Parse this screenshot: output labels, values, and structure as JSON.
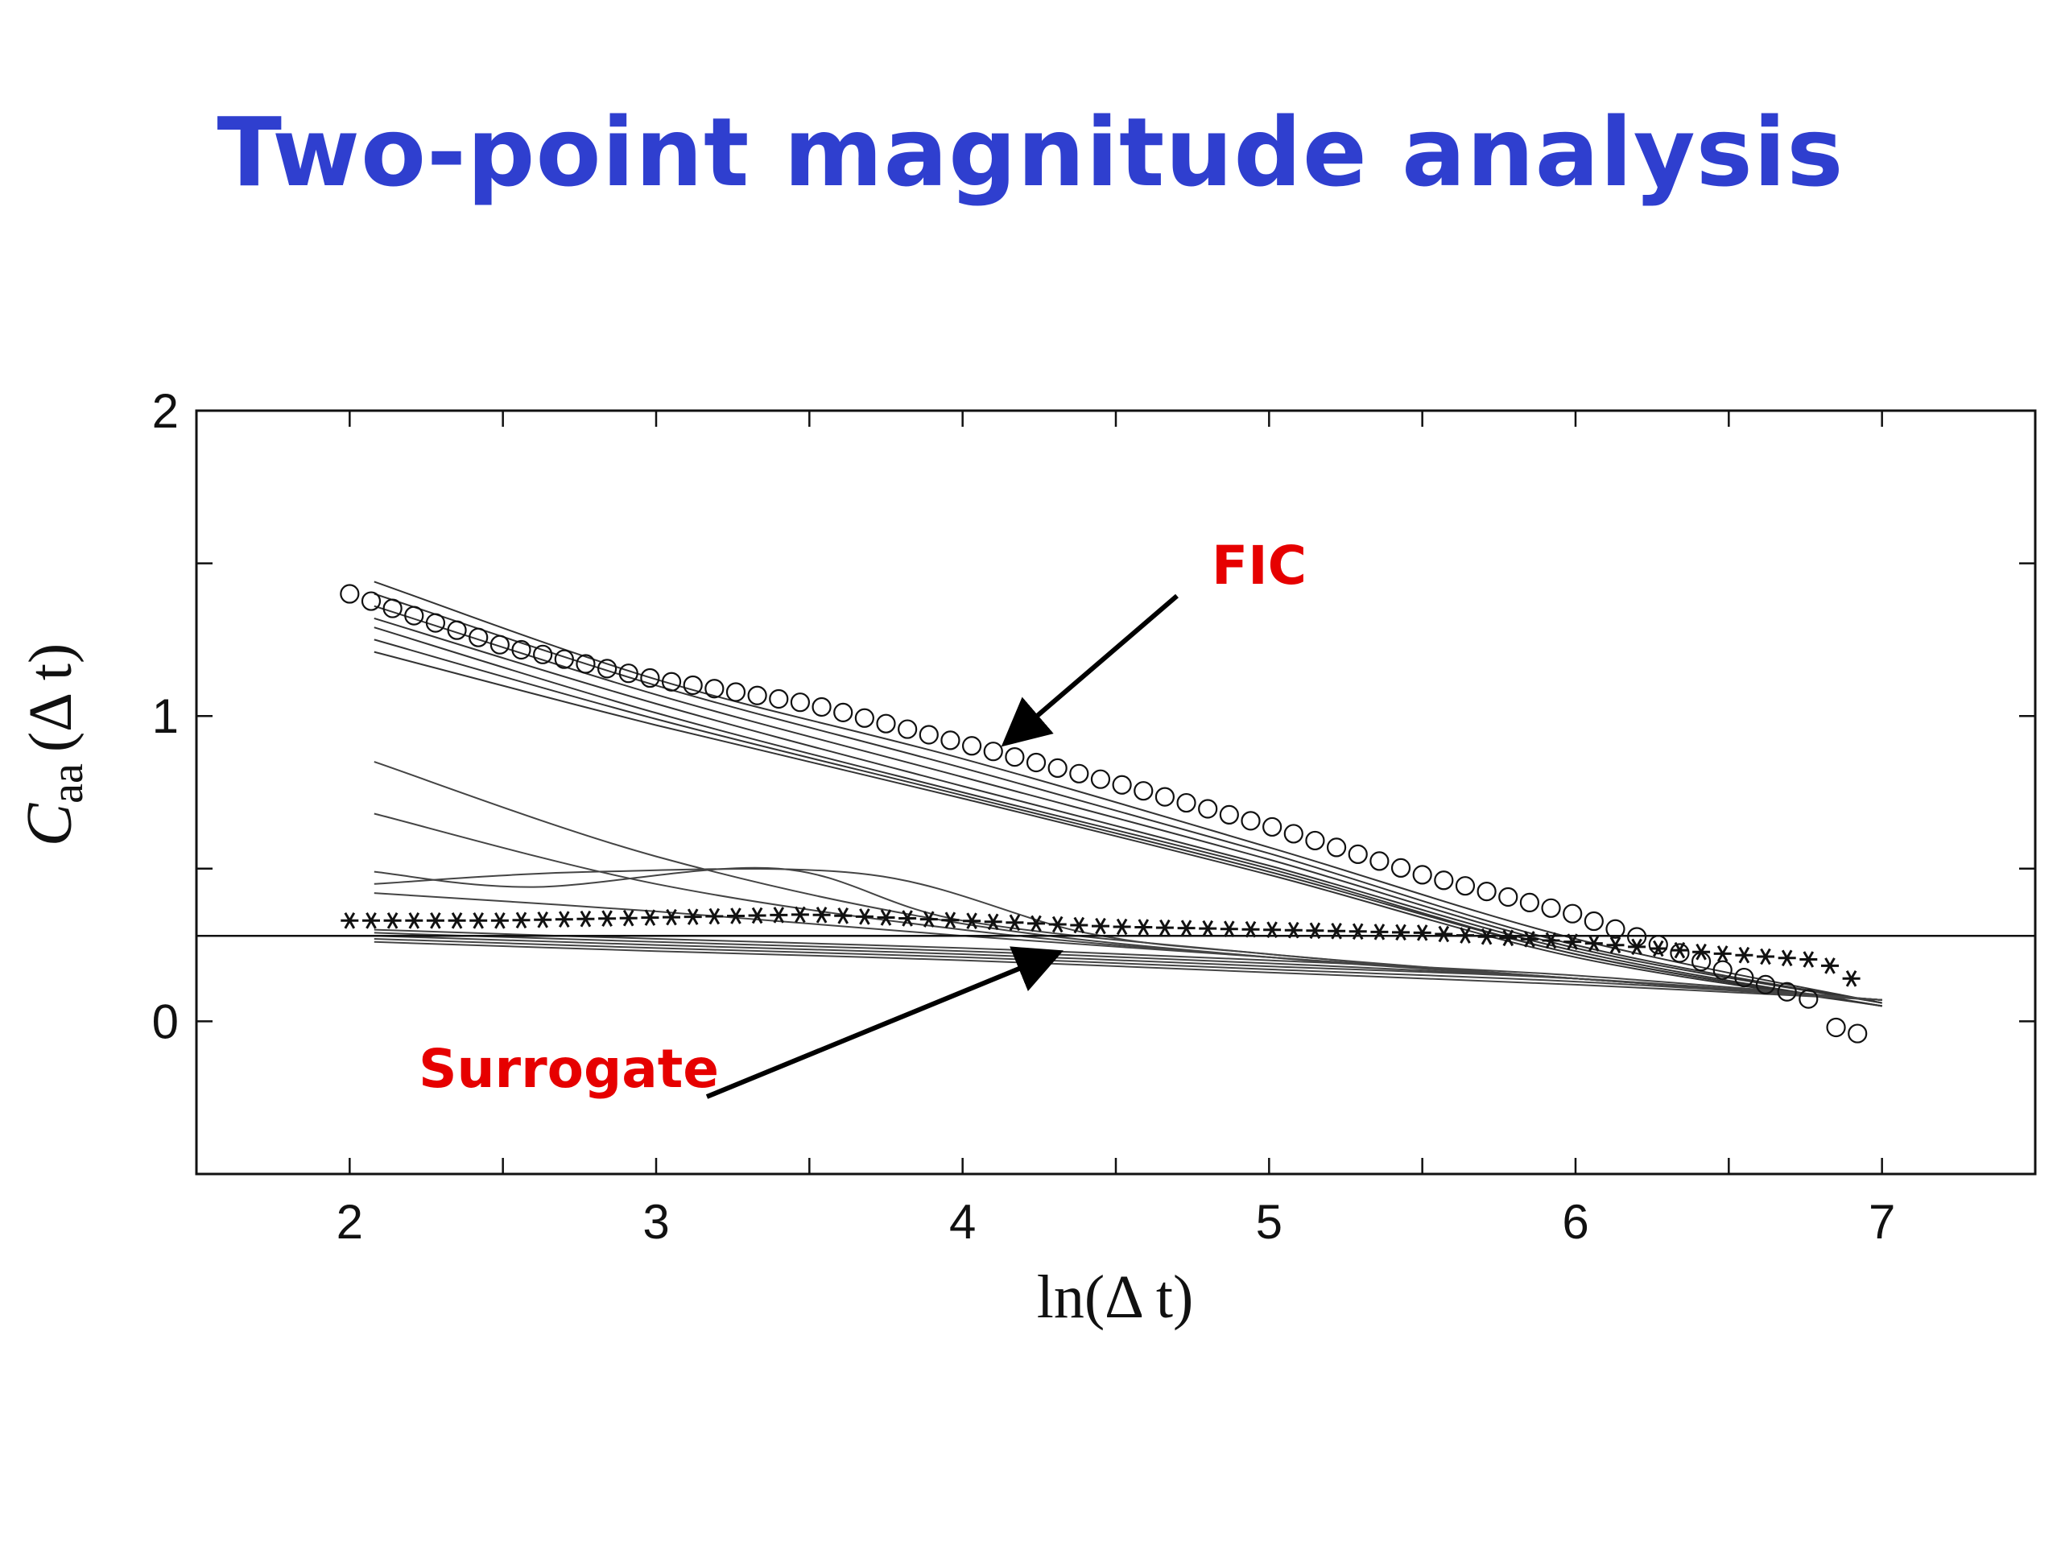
{
  "slide": {
    "title": "Two-point magnitude analysis"
  },
  "colors": {
    "title": "#2f3fcf",
    "annotation": "#e60000",
    "ink": "#111111"
  },
  "chart_data": {
    "type": "line",
    "title": "",
    "xlabel": "ln(Δ t)",
    "ylabel": "C",
    "ylabel_subscript": "aa",
    "ylabel_suffix": "(Δ t)",
    "xlim": [
      1.5,
      7.5
    ],
    "ylim": [
      -0.5,
      2.0
    ],
    "xticks": [
      2,
      3,
      4,
      5,
      6,
      7
    ],
    "yticks": [
      0,
      1,
      2
    ],
    "minor_xticks": [
      2.5,
      3.5,
      4.5,
      5.5,
      6.5
    ],
    "minor_yticks": [
      -0.5,
      0.5,
      1.5
    ],
    "grid": false,
    "reference_line_y": 0.28,
    "series": [
      {
        "name": "FIC",
        "marker": "circle",
        "points": [
          [
            2.0,
            1.4
          ],
          [
            2.5,
            1.23
          ],
          [
            3.0,
            1.12
          ],
          [
            3.5,
            1.04
          ],
          [
            4.0,
            0.91
          ],
          [
            4.5,
            0.78
          ],
          [
            5.0,
            0.64
          ],
          [
            5.5,
            0.48
          ],
          [
            6.0,
            0.35
          ],
          [
            6.3,
            0.24
          ],
          [
            6.5,
            0.16
          ],
          [
            6.8,
            0.06
          ],
          [
            6.85,
            -0.02
          ],
          [
            6.92,
            -0.04
          ]
        ]
      },
      {
        "name": "Surrogate",
        "marker": "star",
        "points": [
          [
            2.0,
            0.33
          ],
          [
            2.5,
            0.33
          ],
          [
            3.0,
            0.34
          ],
          [
            3.5,
            0.35
          ],
          [
            4.0,
            0.33
          ],
          [
            4.5,
            0.31
          ],
          [
            5.0,
            0.3
          ],
          [
            5.5,
            0.29
          ],
          [
            6.0,
            0.26
          ],
          [
            6.5,
            0.22
          ],
          [
            6.8,
            0.2
          ],
          [
            6.9,
            0.14
          ]
        ]
      }
    ],
    "fic_thin_curves": [
      [
        [
          2.08,
          1.44
        ],
        [
          3.0,
          1.12
        ],
        [
          4.0,
          0.86
        ],
        [
          5.0,
          0.57
        ],
        [
          6.0,
          0.27
        ],
        [
          7.0,
          0.06
        ]
      ],
      [
        [
          2.08,
          1.4
        ],
        [
          3.0,
          1.1
        ],
        [
          4.0,
          0.83
        ],
        [
          5.0,
          0.55
        ],
        [
          6.0,
          0.25
        ],
        [
          7.0,
          0.06
        ]
      ],
      [
        [
          2.08,
          1.36
        ],
        [
          3.0,
          1.07
        ],
        [
          4.0,
          0.8
        ],
        [
          5.0,
          0.53
        ],
        [
          6.0,
          0.24
        ],
        [
          7.0,
          0.06
        ]
      ],
      [
        [
          2.08,
          1.32
        ],
        [
          3.0,
          1.04
        ],
        [
          4.0,
          0.77
        ],
        [
          5.0,
          0.51
        ],
        [
          6.0,
          0.23
        ],
        [
          7.0,
          0.05
        ]
      ],
      [
        [
          2.08,
          1.29
        ],
        [
          3.0,
          1.01
        ],
        [
          4.0,
          0.75
        ],
        [
          5.0,
          0.5
        ],
        [
          6.0,
          0.22
        ],
        [
          7.0,
          0.05
        ]
      ],
      [
        [
          2.08,
          1.25
        ],
        [
          3.0,
          0.99
        ],
        [
          4.0,
          0.74
        ],
        [
          5.0,
          0.49
        ],
        [
          6.0,
          0.22
        ],
        [
          7.0,
          0.05
        ]
      ],
      [
        [
          2.08,
          1.21
        ],
        [
          3.0,
          0.97
        ],
        [
          4.0,
          0.73
        ],
        [
          5.0,
          0.48
        ],
        [
          6.0,
          0.21
        ],
        [
          7.0,
          0.05
        ]
      ]
    ],
    "surrogate_thin_curves": [
      [
        [
          2.08,
          0.85
        ],
        [
          3.0,
          0.54
        ],
        [
          4.0,
          0.32
        ],
        [
          5.0,
          0.21
        ],
        [
          6.0,
          0.14
        ],
        [
          7.0,
          0.07
        ]
      ],
      [
        [
          2.08,
          0.68
        ],
        [
          3.0,
          0.45
        ],
        [
          4.0,
          0.3
        ],
        [
          5.0,
          0.21
        ],
        [
          6.0,
          0.14
        ],
        [
          7.0,
          0.07
        ]
      ],
      [
        [
          2.08,
          0.49
        ],
        [
          2.6,
          0.44
        ],
        [
          3.4,
          0.5
        ],
        [
          4.0,
          0.33
        ],
        [
          5.0,
          0.22
        ],
        [
          6.0,
          0.14
        ],
        [
          7.0,
          0.07
        ]
      ],
      [
        [
          2.08,
          0.45
        ],
        [
          2.8,
          0.49
        ],
        [
          3.7,
          0.48
        ],
        [
          4.4,
          0.29
        ],
        [
          5.0,
          0.22
        ],
        [
          6.0,
          0.14
        ],
        [
          7.0,
          0.07
        ]
      ],
      [
        [
          2.08,
          0.42
        ],
        [
          3.0,
          0.36
        ],
        [
          4.0,
          0.28
        ],
        [
          5.0,
          0.21
        ],
        [
          6.0,
          0.14
        ],
        [
          7.0,
          0.07
        ]
      ],
      [
        [
          2.08,
          0.3
        ],
        [
          3.0,
          0.27
        ],
        [
          4.0,
          0.24
        ],
        [
          5.0,
          0.2
        ],
        [
          6.0,
          0.15
        ],
        [
          7.0,
          0.07
        ]
      ],
      [
        [
          2.08,
          0.29
        ],
        [
          3.0,
          0.26
        ],
        [
          4.0,
          0.23
        ],
        [
          5.0,
          0.19
        ],
        [
          6.0,
          0.14
        ],
        [
          7.0,
          0.07
        ]
      ],
      [
        [
          2.08,
          0.28
        ],
        [
          3.0,
          0.25
        ],
        [
          4.0,
          0.22
        ],
        [
          5.0,
          0.18
        ],
        [
          6.0,
          0.14
        ],
        [
          7.0,
          0.07
        ]
      ],
      [
        [
          2.08,
          0.27
        ],
        [
          3.0,
          0.24
        ],
        [
          4.0,
          0.21
        ],
        [
          5.0,
          0.17
        ],
        [
          6.0,
          0.13
        ],
        [
          7.0,
          0.07
        ]
      ],
      [
        [
          2.08,
          0.26
        ],
        [
          3.0,
          0.23
        ],
        [
          4.0,
          0.2
        ],
        [
          5.0,
          0.16
        ],
        [
          6.0,
          0.12
        ],
        [
          7.0,
          0.07
        ]
      ]
    ],
    "annotations": [
      {
        "text": "FIC",
        "points_to": [
          4.15,
          0.92
        ]
      },
      {
        "text": "Surrogate",
        "points_to": [
          4.3,
          0.22
        ]
      }
    ]
  }
}
